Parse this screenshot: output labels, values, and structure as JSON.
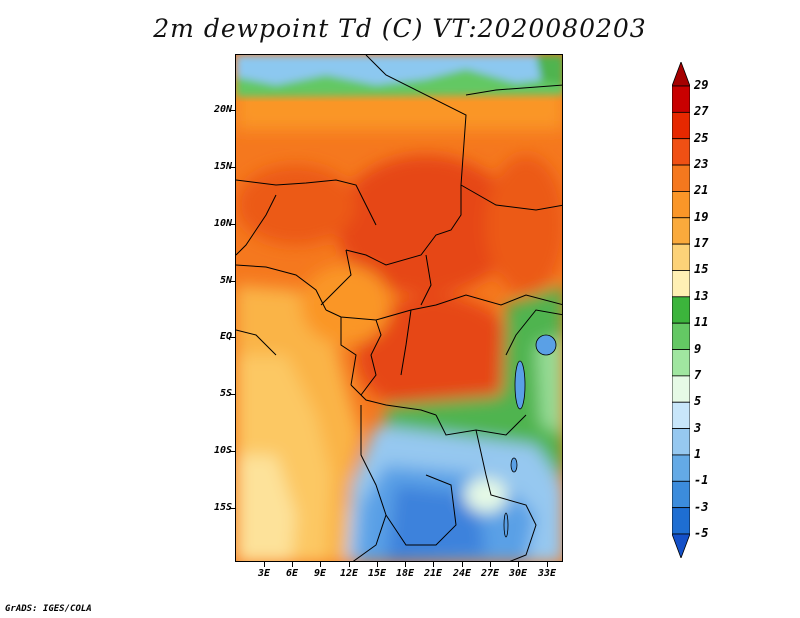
{
  "title": "2m dewpoint Td (C) VT:2020080203",
  "credit": "GrADS: IGES/COLA",
  "latitude_labels": [
    "20N",
    "15N",
    "10N",
    "5N",
    "EQ",
    "5S",
    "10S",
    "15S"
  ],
  "longitude_labels": [
    "3E",
    "6E",
    "9E",
    "12E",
    "15E",
    "18E",
    "21E",
    "24E",
    "27E",
    "30E",
    "33E"
  ],
  "colorbar": {
    "labels": [
      "29",
      "27",
      "25",
      "23",
      "21",
      "19",
      "17",
      "15",
      "13",
      "11",
      "9",
      "7",
      "5",
      "3",
      "1",
      "-1",
      "-3",
      "-5"
    ],
    "colors": [
      "#a50000",
      "#c80000",
      "#e62800",
      "#f05014",
      "#f5781e",
      "#fa9628",
      "#faaa3c",
      "#fcd278",
      "#fff0b4",
      "#3cb43c",
      "#64c864",
      "#a0e6a0",
      "#e6fae6",
      "#c8e6fa",
      "#96c8f0",
      "#64aae6",
      "#3c8cdc",
      "#1e6ed2",
      "#1450c8"
    ]
  }
}
